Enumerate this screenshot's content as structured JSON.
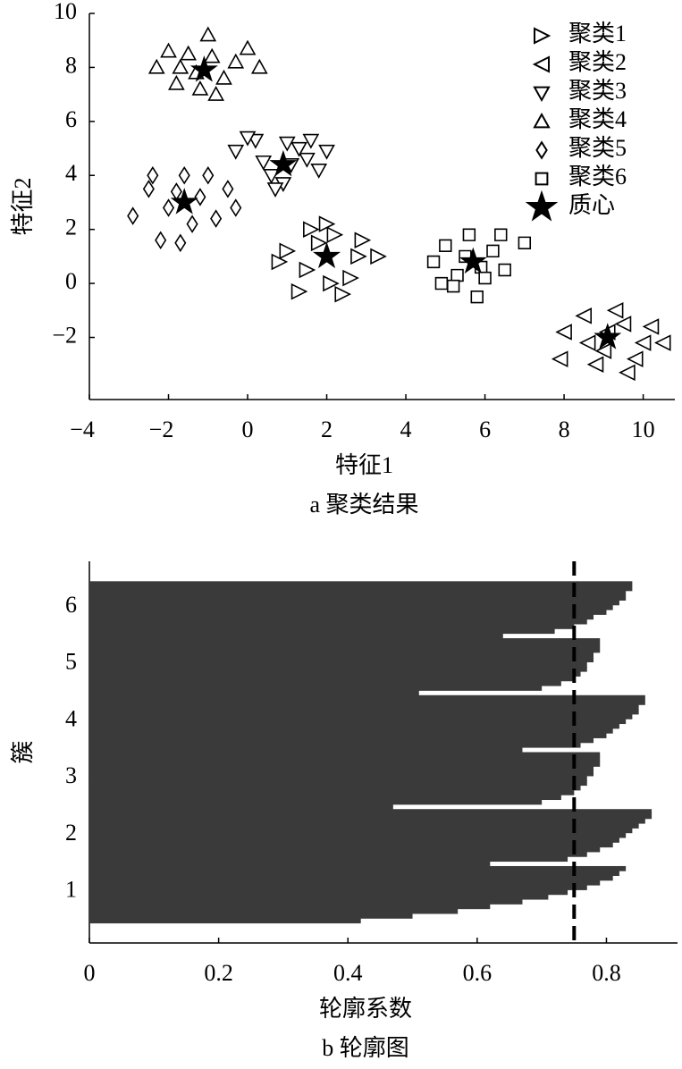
{
  "chart_data": [
    {
      "type": "scatter",
      "xlabel": "特征1",
      "ylabel": "特征2",
      "caption": "a 聚类结果",
      "xlim": [
        -4,
        10.8
      ],
      "ylim": [
        -4.3,
        10
      ],
      "xticks": [
        {
          "value": -4,
          "label": "−4"
        },
        {
          "value": -2,
          "label": "−2"
        },
        0,
        2,
        4,
        6,
        8,
        10
      ],
      "yticks": [
        {
          "value": -2,
          "label": "−2"
        },
        0,
        2,
        4,
        6,
        8,
        10
      ],
      "legend": "upper right",
      "series": [
        {
          "name": "聚类1",
          "marker": "triangle-right",
          "color": "#000000",
          "x": [
            1.0,
            1.5,
            2.2,
            2.8,
            1.3,
            2.0,
            2.6,
            3.3,
            1.8,
            2.4,
            0.8,
            2.1,
            1.6,
            2.9
          ],
          "y": [
            1.2,
            0.5,
            1.8,
            1.0,
            -0.3,
            2.2,
            0.2,
            1.0,
            1.5,
            -0.4,
            0.8,
            0.0,
            2.0,
            1.6
          ]
        },
        {
          "name": "聚类2",
          "marker": "triangle-left",
          "color": "#000000",
          "x": [
            8.0,
            8.5,
            9.0,
            9.5,
            10.0,
            10.5,
            8.8,
            9.3,
            9.8,
            7.9,
            9.1,
            10.2,
            8.6,
            9.6
          ],
          "y": [
            -1.8,
            -1.2,
            -2.5,
            -1.5,
            -2.2,
            -2.2,
            -3.0,
            -1.0,
            -2.8,
            -2.8,
            -1.8,
            -1.6,
            -2.2,
            -3.3
          ]
        },
        {
          "name": "聚类3",
          "marker": "triangle-down",
          "color": "#000000",
          "x": [
            -0.3,
            0.2,
            0.6,
            1.0,
            1.5,
            2.0,
            0.4,
            0.9,
            1.3,
            1.8,
            0.0,
            1.1,
            0.7,
            1.6
          ],
          "y": [
            4.9,
            5.3,
            4.0,
            5.2,
            4.6,
            4.9,
            4.5,
            3.7,
            5.0,
            4.2,
            5.4,
            4.4,
            3.5,
            5.3
          ]
        },
        {
          "name": "聚类4",
          "marker": "triangle-up",
          "color": "#000000",
          "x": [
            -2.3,
            -1.8,
            -1.3,
            -0.8,
            -0.3,
            -1.5,
            -1.0,
            -2.0,
            -0.6,
            -1.2,
            -1.7,
            -0.9,
            0.0,
            0.3
          ],
          "y": [
            8.0,
            7.4,
            7.8,
            7.0,
            8.2,
            8.5,
            9.2,
            8.6,
            7.6,
            7.2,
            8.0,
            8.4,
            8.7,
            8.0
          ]
        },
        {
          "name": "聚类5",
          "marker": "diamond",
          "color": "#000000",
          "x": [
            -2.9,
            -2.5,
            -2.0,
            -1.6,
            -1.2,
            -0.8,
            -0.3,
            -2.2,
            -1.8,
            -1.4,
            -1.0,
            -0.5,
            -2.4,
            -1.7
          ],
          "y": [
            2.5,
            3.5,
            2.8,
            4.0,
            3.2,
            2.4,
            2.8,
            1.6,
            3.4,
            2.2,
            4.0,
            3.5,
            4.0,
            1.5
          ]
        },
        {
          "name": "聚类6",
          "marker": "square",
          "color": "#000000",
          "x": [
            4.7,
            5.0,
            5.3,
            5.6,
            5.9,
            6.2,
            6.5,
            7.0,
            5.2,
            5.8,
            6.4,
            4.9,
            5.5,
            6.0
          ],
          "y": [
            0.8,
            1.4,
            0.3,
            1.8,
            0.6,
            1.2,
            0.5,
            1.5,
            -0.1,
            -0.5,
            1.8,
            0.0,
            1.0,
            0.2
          ]
        },
        {
          "name": "质心",
          "marker": "star",
          "color": "#000000",
          "x": [
            2.0,
            9.1,
            0.9,
            -1.1,
            -1.6,
            5.7
          ],
          "y": [
            1.0,
            -2.0,
            4.4,
            7.9,
            3.0,
            0.8
          ]
        }
      ]
    },
    {
      "type": "silhouette",
      "xlabel": "轮廓系数",
      "ylabel": "簇",
      "caption": "b 轮廓图",
      "xlim": [
        0,
        0.91
      ],
      "ylim": [
        0.1,
        6.8
      ],
      "xticks": [
        0,
        0.2,
        0.4,
        0.6,
        0.8
      ],
      "yticks": [
        1,
        2,
        3,
        4,
        5,
        6
      ],
      "color": "#3a3a3a",
      "mean_line": 0.75,
      "series": [
        {
          "values": [
            0.42,
            0.5,
            0.57,
            0.62,
            0.67,
            0.71,
            0.74,
            0.77,
            0.79,
            0.81,
            0.82,
            0.83
          ]
        },
        {
          "values": [
            0.62,
            0.74,
            0.77,
            0.79,
            0.81,
            0.82,
            0.83,
            0.84,
            0.85,
            0.86,
            0.87,
            0.87
          ]
        },
        {
          "values": [
            0.47,
            0.7,
            0.73,
            0.75,
            0.76,
            0.77,
            0.77,
            0.78,
            0.78,
            0.79,
            0.79,
            0.79
          ]
        },
        {
          "values": [
            0.67,
            0.76,
            0.78,
            0.8,
            0.81,
            0.82,
            0.83,
            0.84,
            0.85,
            0.85,
            0.86,
            0.86
          ]
        },
        {
          "values": [
            0.51,
            0.7,
            0.73,
            0.75,
            0.76,
            0.77,
            0.77,
            0.78,
            0.78,
            0.79,
            0.79,
            0.79
          ]
        },
        {
          "values": [
            0.64,
            0.72,
            0.75,
            0.77,
            0.78,
            0.8,
            0.81,
            0.82,
            0.83,
            0.83,
            0.84,
            0.84
          ]
        }
      ]
    }
  ]
}
